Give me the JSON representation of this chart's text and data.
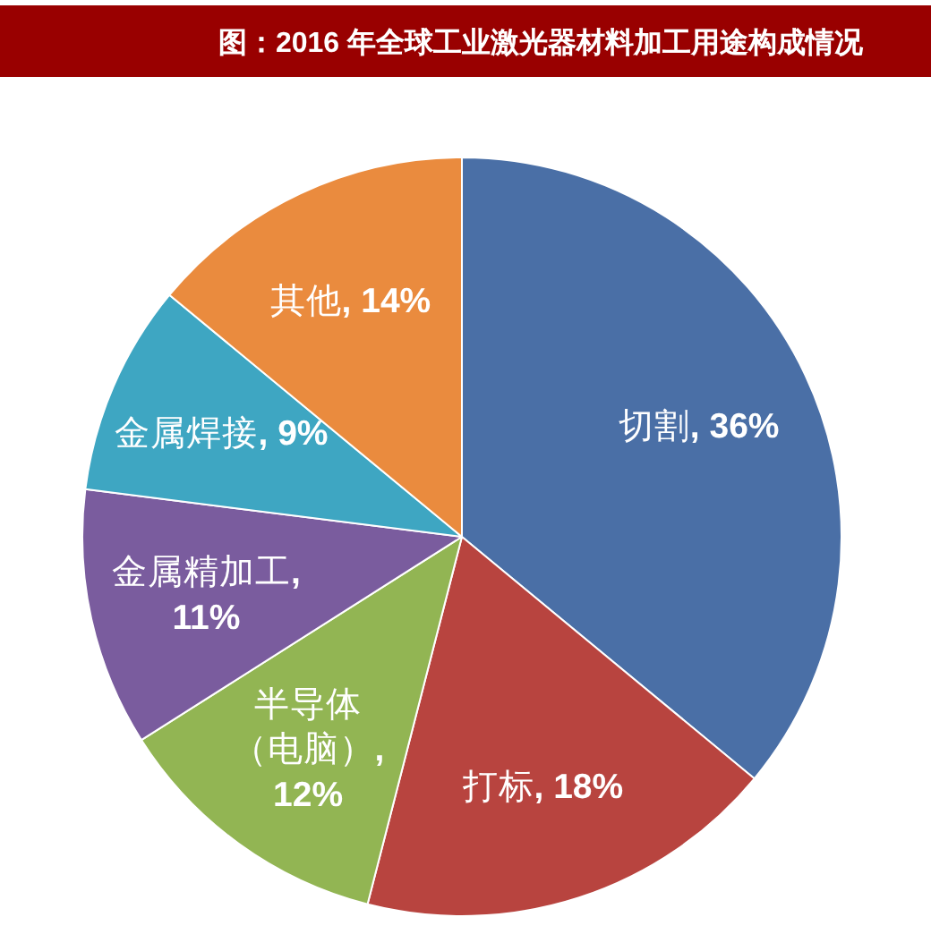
{
  "chart_data": {
    "type": "pie",
    "title": "图：2016 年全球工业激光器材料加工用途构成情况",
    "categories": [
      "切割",
      "打标",
      "半导体（电脑）",
      "金属精加工",
      "金属焊接",
      "其他"
    ],
    "values": [
      36,
      18,
      12,
      11,
      9,
      14
    ],
    "value_labels": [
      ", 36%",
      ", 18%",
      ", 12%",
      ", 11%",
      ", 9%",
      ", 14%"
    ],
    "colors": [
      "#4a6fa6",
      "#b8443f",
      "#92b553",
      "#7a5c9e",
      "#3ea6c2",
      "#ea8b3e"
    ]
  }
}
